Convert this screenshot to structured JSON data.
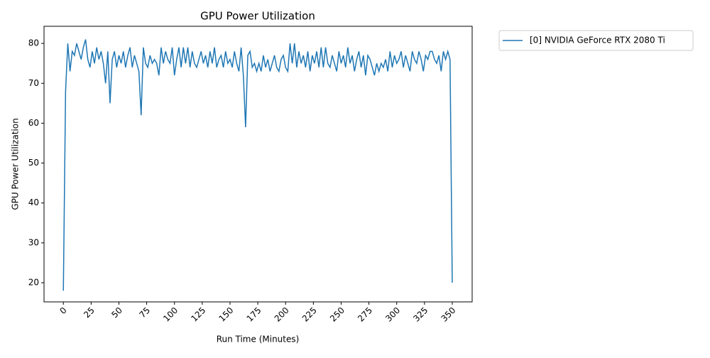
{
  "chart_data": {
    "type": "line",
    "title": "GPU Power Utilization",
    "x_label": "Run Time (Minutes)",
    "y_label": "GPU Power Utilization",
    "xlim": [
      -17.4,
      367.9
    ],
    "ylim": [
      15.2,
      84.3
    ],
    "xticks": [
      0,
      25,
      50,
      75,
      100,
      125,
      150,
      175,
      200,
      225,
      250,
      275,
      300,
      325,
      350
    ],
    "yticks": [
      20,
      30,
      40,
      50,
      60,
      70,
      80
    ],
    "legend": "outside-upper-right",
    "x": [
      0,
      2,
      4,
      6,
      8,
      10,
      12,
      14,
      16,
      18,
      20,
      22,
      24,
      26,
      28,
      30,
      32,
      34,
      36,
      38,
      40,
      42,
      44,
      46,
      48,
      50,
      52,
      54,
      56,
      58,
      60,
      62,
      64,
      66,
      68,
      70,
      72,
      74,
      76,
      78,
      80,
      82,
      84,
      86,
      88,
      90,
      92,
      94,
      96,
      98,
      100,
      102,
      104,
      106,
      108,
      110,
      112,
      114,
      116,
      118,
      120,
      122,
      124,
      126,
      128,
      130,
      132,
      134,
      136,
      138,
      140,
      142,
      144,
      146,
      148,
      150,
      152,
      154,
      156,
      158,
      160,
      162,
      164,
      166,
      168,
      170,
      172,
      174,
      176,
      178,
      180,
      182,
      184,
      186,
      188,
      190,
      192,
      194,
      196,
      198,
      200,
      202,
      204,
      206,
      208,
      210,
      212,
      214,
      216,
      218,
      220,
      222,
      224,
      226,
      228,
      230,
      232,
      234,
      236,
      238,
      240,
      242,
      244,
      246,
      248,
      250,
      252,
      254,
      256,
      258,
      260,
      262,
      264,
      266,
      268,
      270,
      272,
      274,
      276,
      278,
      280,
      282,
      284,
      286,
      288,
      290,
      292,
      294,
      296,
      298,
      300,
      302,
      304,
      306,
      308,
      310,
      312,
      314,
      316,
      318,
      320,
      322,
      324,
      326,
      328,
      330,
      332,
      334,
      336,
      338,
      340,
      342,
      344,
      346,
      348,
      350
    ],
    "series": [
      {
        "name": "[0] NVIDIA GeForce RTX 2080 Ti",
        "color": "#1f77b4",
        "values": [
          18,
          68,
          80,
          73,
          78,
          77,
          80,
          78,
          76,
          79,
          81,
          76,
          74,
          78,
          75,
          79,
          76,
          78,
          75,
          70,
          78,
          65,
          76,
          78,
          74,
          77,
          75,
          78,
          74,
          77,
          79,
          74,
          77,
          75,
          73,
          62,
          79,
          75,
          74,
          77,
          75,
          76,
          75,
          72,
          79,
          75,
          78,
          76,
          75,
          79,
          72,
          76,
          79,
          74,
          79,
          75,
          79,
          74,
          78,
          75,
          74,
          76,
          78,
          75,
          77,
          74,
          78,
          75,
          79,
          74,
          76,
          77,
          74,
          78,
          75,
          76,
          74,
          78,
          75,
          73,
          79,
          72,
          59,
          77,
          78,
          74,
          75,
          73,
          75,
          73,
          77,
          74,
          76,
          73,
          75,
          77,
          74,
          73,
          76,
          77,
          74,
          73,
          80,
          75,
          80,
          74,
          78,
          75,
          77,
          74,
          78,
          73,
          77,
          75,
          78,
          74,
          79,
          74,
          79,
          75,
          74,
          77,
          75,
          73,
          78,
          75,
          77,
          74,
          79,
          75,
          77,
          73,
          76,
          78,
          74,
          77,
          72,
          77,
          76,
          74,
          72,
          75,
          73,
          75,
          74,
          76,
          73,
          78,
          74,
          77,
          75,
          76,
          78,
          74,
          77,
          75,
          73,
          78,
          76,
          75,
          78,
          76,
          73,
          77,
          76,
          78,
          78,
          76,
          75,
          77,
          73,
          78,
          76,
          78,
          76,
          20
        ]
      }
    ]
  }
}
